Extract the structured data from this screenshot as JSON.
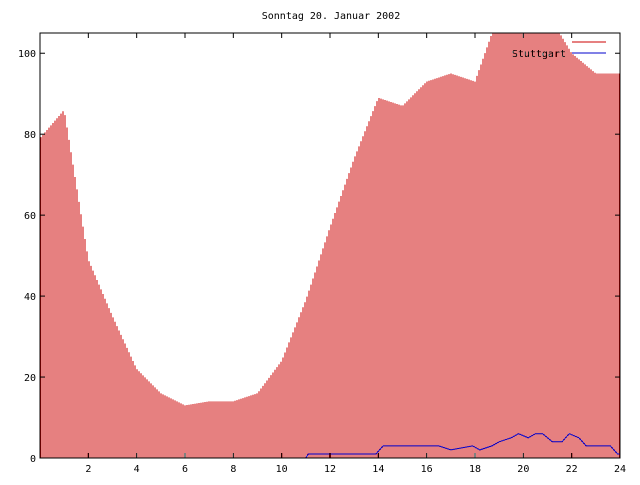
{
  "chart_data": {
    "type": "bar",
    "title": "Sonntag 20. Januar 2002",
    "xlabel": "",
    "ylabel": "",
    "xlim": [
      0,
      24
    ],
    "ylim": [
      0,
      105
    ],
    "x_ticks": [
      2,
      4,
      6,
      8,
      10,
      12,
      14,
      16,
      18,
      20,
      22,
      24
    ],
    "y_ticks": [
      0,
      20,
      40,
      60,
      80,
      100
    ],
    "x_tick_labels": [
      "2",
      "4",
      "6",
      "8",
      "10",
      "12",
      "14",
      "16",
      "18",
      "20",
      "22",
      "24"
    ],
    "y_tick_labels": [
      "0",
      "20",
      "40",
      "60",
      "80",
      "100"
    ],
    "legend_position": "top-right",
    "grid": false,
    "series": [
      {
        "name": "",
        "style": "impulses",
        "color": "#cc0000",
        "x": [
          0,
          1,
          2,
          3,
          4,
          5,
          6,
          7,
          8,
          9,
          10,
          11,
          12,
          13,
          14,
          15,
          16,
          17,
          18,
          19,
          20,
          21,
          22,
          23,
          24
        ],
        "values": [
          79,
          86,
          49,
          35,
          22,
          16,
          13,
          14,
          14,
          16,
          24,
          39,
          57,
          74,
          89,
          87,
          93,
          95,
          93,
          110,
          110,
          110,
          100,
          95,
          95
        ]
      },
      {
        "name": "Stuttgart",
        "style": "line",
        "color": "#0000cc",
        "x": [
          0,
          11,
          11.1,
          13.9,
          14.2,
          16.5,
          17,
          17.9,
          18.2,
          18.7,
          19,
          19.5,
          19.8,
          20.2,
          20.5,
          20.8,
          21.2,
          21.6,
          21.9,
          22.3,
          22.6,
          23.6,
          23.9,
          24
        ],
        "values": [
          0,
          0,
          1,
          1,
          3,
          3,
          2,
          3,
          2,
          3,
          4,
          5,
          6,
          5,
          6,
          6,
          4,
          4,
          6,
          5,
          3,
          3,
          1,
          1
        ]
      }
    ]
  }
}
